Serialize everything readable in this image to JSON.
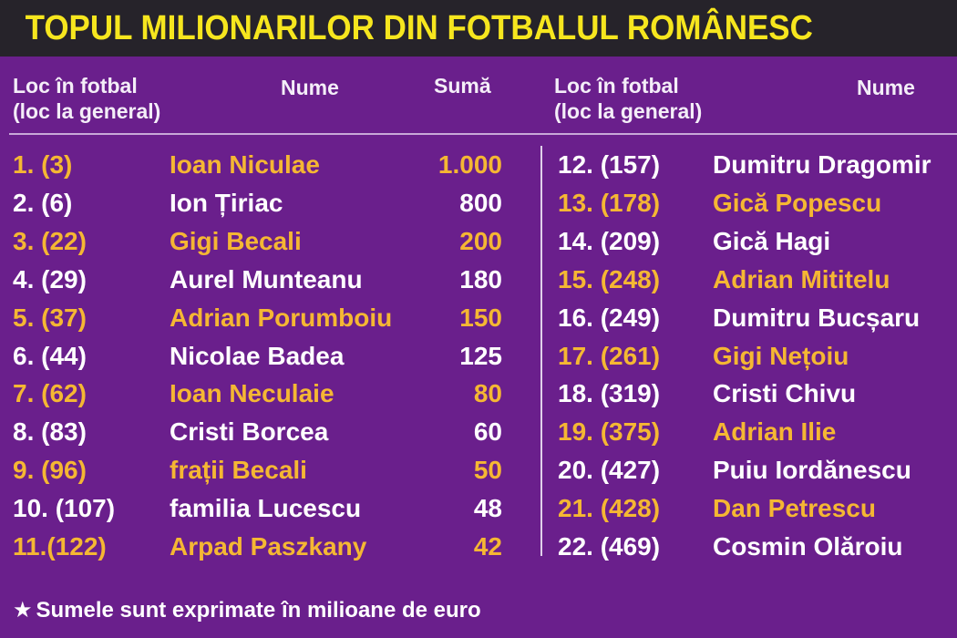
{
  "title": "TOPUL MILIONARILOR DIN FOTBALUL ROMÂNESC",
  "headers": {
    "left": {
      "rank_line1": "Loc în fotbal",
      "rank_line2": "(loc la general)",
      "name": "Nume",
      "sum": "Sumă"
    },
    "right": {
      "rank_line1": "Loc în fotbal",
      "rank_line2": "(loc la general)",
      "name": "Nume"
    }
  },
  "left_rows": [
    {
      "rank": "1. (3)",
      "name": "Ioan Niculae",
      "sum": "1.000",
      "highlight": true
    },
    {
      "rank": "2. (6)",
      "name": "Ion Țiriac",
      "sum": "800",
      "highlight": false
    },
    {
      "rank": "3. (22)",
      "name": "Gigi Becali",
      "sum": "200",
      "highlight": true
    },
    {
      "rank": "4. (29)",
      "name": "Aurel Munteanu",
      "sum": "180",
      "highlight": false
    },
    {
      "rank": "5. (37)",
      "name": "Adrian Porumboiu",
      "sum": "150",
      "highlight": true
    },
    {
      "rank": "6. (44)",
      "name": "Nicolae Badea",
      "sum": "125",
      "highlight": false
    },
    {
      "rank": "7. (62)",
      "name": "Ioan Neculaie",
      "sum": "80",
      "highlight": true
    },
    {
      "rank": "8. (83)",
      "name": "Cristi Borcea",
      "sum": "60",
      "highlight": false
    },
    {
      "rank": "9. (96)",
      "name": "frații Becali",
      "sum": "50",
      "highlight": true
    },
    {
      "rank": "10. (107)",
      "name": "familia Lucescu",
      "sum": "48",
      "highlight": false
    },
    {
      "rank": "11.(122)",
      "name": "Arpad Paszkany",
      "sum": "42",
      "highlight": true
    }
  ],
  "right_rows": [
    {
      "rank": "12. (157)",
      "name": "Dumitru Dragomir",
      "highlight": false
    },
    {
      "rank": "13. (178)",
      "name": "Gică Popescu",
      "highlight": true
    },
    {
      "rank": "14. (209)",
      "name": "Gică Hagi",
      "highlight": false
    },
    {
      "rank": "15. (248)",
      "name": "Adrian Mititelu",
      "highlight": true
    },
    {
      "rank": "16. (249)",
      "name": "Dumitru Bucșaru",
      "highlight": false
    },
    {
      "rank": "17. (261)",
      "name": "Gigi Nețoiu",
      "highlight": true
    },
    {
      "rank": "18. (319)",
      "name": "Cristi Chivu",
      "highlight": false
    },
    {
      "rank": "19. (375)",
      "name": "Adrian Ilie",
      "highlight": true
    },
    {
      "rank": "20. (427)",
      "name": "Puiu Iordănescu",
      "highlight": false
    },
    {
      "rank": "21. (428)",
      "name": "Dan Petrescu",
      "highlight": true
    },
    {
      "rank": "22. (469)",
      "name": "Cosmin Olăroiu",
      "highlight": false
    }
  ],
  "footnote": {
    "star": "★",
    "text": "Sumele sunt exprimate în milioane de euro"
  },
  "colors": {
    "background": "#6a1f8c",
    "title_bar": "#26232a",
    "title": "#f6e61e",
    "highlight": "#f5b733",
    "text": "#ffffff"
  }
}
